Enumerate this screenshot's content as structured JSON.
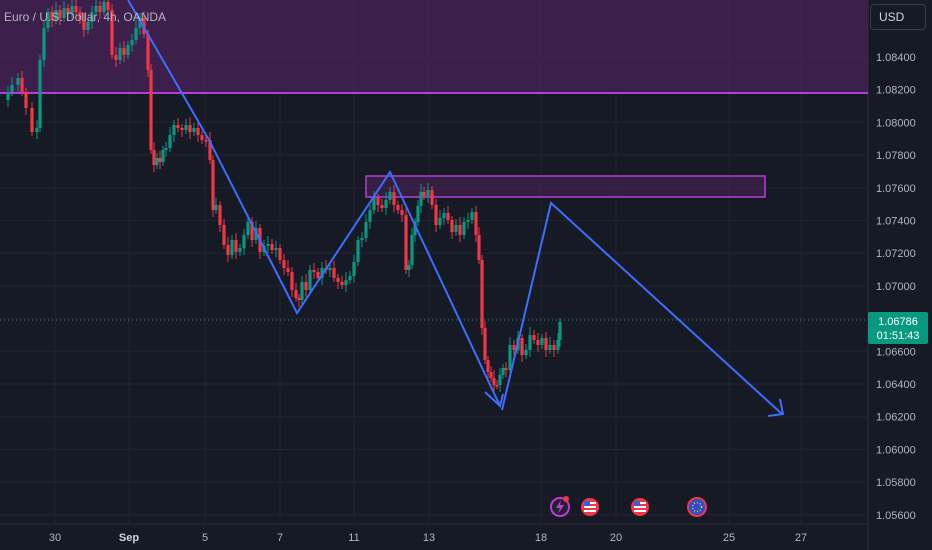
{
  "header": {
    "symbol_title": "Euro / U.S. Dollar, 4h, OANDA"
  },
  "scale": {
    "currency": "USD"
  },
  "price_axis": [
    "1.08400",
    "1.08200",
    "1.08000",
    "1.07800",
    "1.07600",
    "1.07400",
    "1.07200",
    "1.07000",
    "1.06800",
    "1.06600",
    "1.06400",
    "1.06200",
    "1.06000",
    "1.05800",
    "1.05600"
  ],
  "time_axis": [
    "30",
    "Sep",
    "5",
    "7",
    "11",
    "13",
    "18",
    "20",
    "25",
    "27"
  ],
  "last_price": {
    "value": "1.06786",
    "countdown": "01:51:43"
  },
  "colors": {
    "up": "#089981",
    "down": "#F23645",
    "drawing": "#3D6DFF",
    "zone": "#9C27B0",
    "background": "#161A25"
  },
  "event_icons": [
    "lightning-icon",
    "us-flag-icon",
    "us-flag-icon",
    "us-flag-icon",
    "eu-flag-icon"
  ]
}
